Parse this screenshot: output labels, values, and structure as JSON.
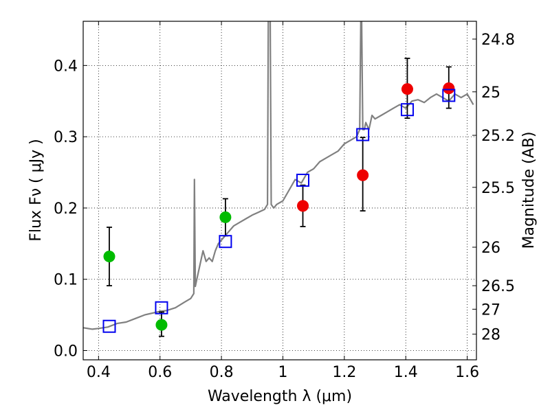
{
  "chart_data": {
    "type": "scatter",
    "xlabel": "Wavelength  λ (μm)",
    "ylabel": "Flux  Fν  ( μJy )",
    "y2label": "Magnitude (AB)",
    "xlim": [
      0.35,
      1.63
    ],
    "ylim": [
      -0.013,
      0.462
    ],
    "x_ticks": [
      0.4,
      0.6,
      0.8,
      1.0,
      1.2,
      1.4,
      1.6
    ],
    "x_tick_labels": [
      "0.4",
      "0.6",
      "0.8",
      "1",
      "1.2",
      "1.4",
      "1.6"
    ],
    "y_ticks": [
      0.0,
      0.1,
      0.2,
      0.3,
      0.4
    ],
    "y_tick_labels": [
      "0.0",
      "0.1",
      "0.2",
      "0.3",
      "0.4"
    ],
    "mag_ticks": [
      {
        "label": "24.8",
        "flux": 0.437
      },
      {
        "label": "25",
        "flux": 0.363
      },
      {
        "label": "25.2",
        "flux": 0.302
      },
      {
        "label": "25.5",
        "flux": 0.229
      },
      {
        "label": "26",
        "flux": 0.145
      },
      {
        "label": "26.5",
        "flux": 0.091
      },
      {
        "label": "27",
        "flux": 0.058
      },
      {
        "label": "28",
        "flux": 0.023
      }
    ],
    "grid": true,
    "colors": {
      "spectrum": "#808080",
      "green_points": "#00bb00",
      "red_points": "#ee0000",
      "model_boxes": "#0000ee",
      "errorbars": "#000000"
    },
    "series": [
      {
        "kind": "line",
        "color": "#808080",
        "x": [
          0.35,
          0.38,
          0.4,
          0.43,
          0.46,
          0.49,
          0.52,
          0.55,
          0.58,
          0.6,
          0.62,
          0.65,
          0.68,
          0.7,
          0.71,
          0.712,
          0.715,
          0.72,
          0.73,
          0.74,
          0.75,
          0.76,
          0.77,
          0.78,
          0.79,
          0.8,
          0.81,
          0.82,
          0.84,
          0.86,
          0.88,
          0.9,
          0.92,
          0.94,
          0.95,
          0.953,
          0.958,
          0.962,
          0.97,
          0.98,
          1.0,
          1.02,
          1.04,
          1.06,
          1.08,
          1.1,
          1.12,
          1.14,
          1.16,
          1.18,
          1.2,
          1.22,
          1.24,
          1.25,
          1.255,
          1.26,
          1.265,
          1.27,
          1.28,
          1.29,
          1.3,
          1.32,
          1.34,
          1.36,
          1.38,
          1.4,
          1.42,
          1.44,
          1.46,
          1.48,
          1.5,
          1.52,
          1.54,
          1.56,
          1.58,
          1.6,
          1.62
        ],
        "y": [
          0.032,
          0.03,
          0.031,
          0.033,
          0.038,
          0.04,
          0.045,
          0.05,
          0.053,
          0.055,
          0.056,
          0.06,
          0.068,
          0.073,
          0.08,
          0.24,
          0.09,
          0.1,
          0.12,
          0.14,
          0.125,
          0.13,
          0.125,
          0.14,
          0.15,
          0.155,
          0.16,
          0.165,
          0.175,
          0.18,
          0.185,
          0.19,
          0.194,
          0.198,
          0.205,
          0.52,
          0.52,
          0.205,
          0.2,
          0.205,
          0.21,
          0.225,
          0.24,
          0.235,
          0.25,
          0.255,
          0.265,
          0.27,
          0.275,
          0.28,
          0.29,
          0.295,
          0.3,
          0.31,
          0.52,
          0.31,
          0.31,
          0.32,
          0.31,
          0.33,
          0.325,
          0.33,
          0.335,
          0.34,
          0.345,
          0.34,
          0.35,
          0.352,
          0.348,
          0.355,
          0.36,
          0.355,
          0.35,
          0.36,
          0.355,
          0.36,
          0.345
        ]
      },
      {
        "kind": "points",
        "marker": "circle",
        "color": "#00bb00",
        "x": [
          0.435,
          0.605,
          0.813
        ],
        "y": [
          0.132,
          0.036,
          0.187
        ],
        "yerr_low": [
          0.041,
          0.016,
          0.026
        ],
        "yerr_high": [
          0.041,
          0.018,
          0.026
        ]
      },
      {
        "kind": "points",
        "marker": "circle",
        "color": "#ee0000",
        "x": [
          1.065,
          1.26,
          1.405,
          1.54
        ],
        "y": [
          0.203,
          0.246,
          0.367,
          0.368
        ],
        "yerr_low": [
          0.029,
          0.05,
          0.041,
          0.028
        ],
        "yerr_high": [
          0.029,
          0.053,
          0.043,
          0.03
        ]
      },
      {
        "kind": "points",
        "marker": "square",
        "color": "#0000ee",
        "x": [
          0.435,
          0.605,
          0.813,
          1.065,
          1.26,
          1.405,
          1.54
        ],
        "y": [
          0.034,
          0.06,
          0.153,
          0.239,
          0.303,
          0.338,
          0.358
        ]
      }
    ]
  }
}
